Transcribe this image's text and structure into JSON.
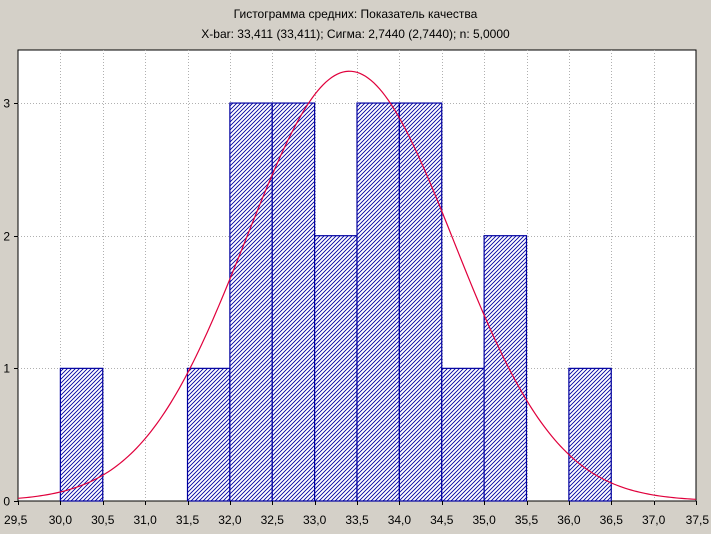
{
  "chart_data": {
    "type": "bar",
    "title": "Гистограмма средних: Показатель качества",
    "subtitle": "X-bar: 33,411 (33,411); Сигма: 2,7440 (2,7440); n: 5,0000",
    "xlabel": "",
    "ylabel": "",
    "xlim": [
      29.5,
      37.5
    ],
    "ylim": [
      0,
      3.4
    ],
    "grid": true,
    "x_ticks": [
      "29,5",
      "30,0",
      "30,5",
      "31,0",
      "31,5",
      "32,0",
      "32,5",
      "33,0",
      "33,5",
      "34,0",
      "34,5",
      "35,0",
      "35,5",
      "36,0",
      "36,5",
      "37,0",
      "37,5"
    ],
    "y_ticks": [
      "0",
      "1",
      "2",
      "3"
    ],
    "bins": [
      {
        "from": 30.0,
        "to": 30.5,
        "count": 1
      },
      {
        "from": 31.5,
        "to": 32.0,
        "count": 1
      },
      {
        "from": 32.0,
        "to": 32.5,
        "count": 3
      },
      {
        "from": 32.5,
        "to": 33.0,
        "count": 3
      },
      {
        "from": 33.0,
        "to": 33.5,
        "count": 2
      },
      {
        "from": 33.5,
        "to": 34.0,
        "count": 3
      },
      {
        "from": 34.0,
        "to": 34.5,
        "count": 3
      },
      {
        "from": 34.5,
        "to": 35.0,
        "count": 1
      },
      {
        "from": 35.0,
        "to": 35.5,
        "count": 2
      },
      {
        "from": 36.0,
        "to": 36.5,
        "count": 1
      }
    ],
    "normal_curve": {
      "mean": 33.411,
      "sigma": 2.744,
      "n": 5.0,
      "peak": 3.24,
      "color": "#e0003c"
    },
    "bar_stroke": "#0000a0",
    "bar_hatch": "#0000a0"
  }
}
